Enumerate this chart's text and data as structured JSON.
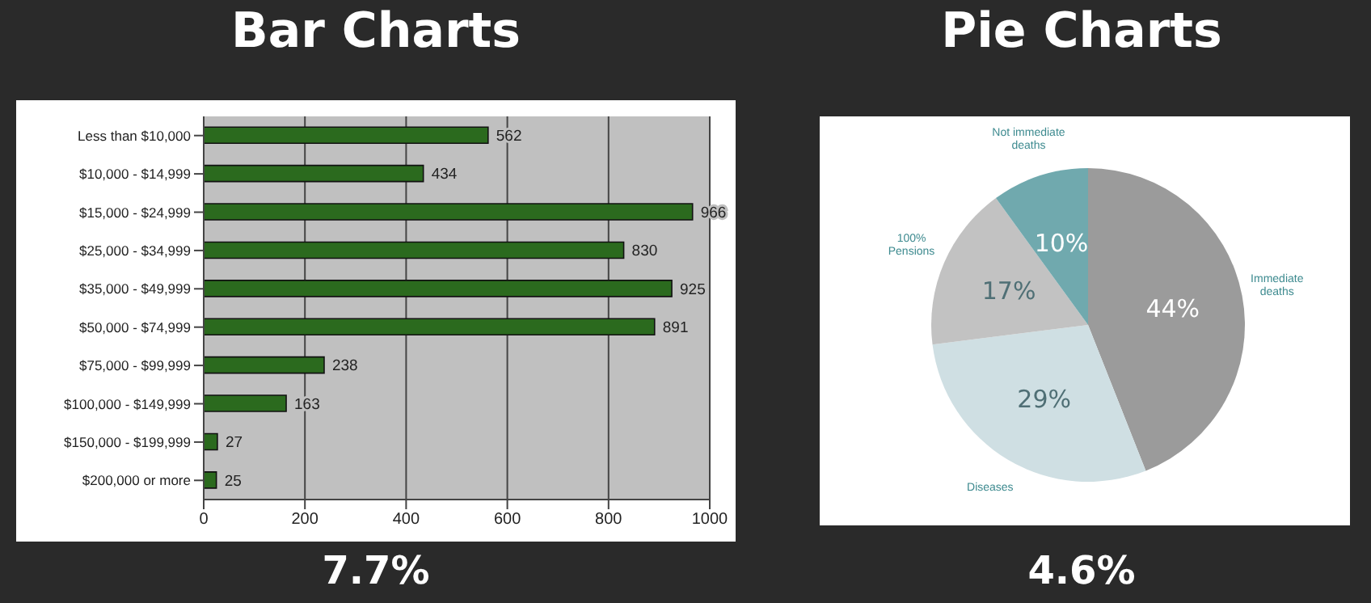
{
  "chart_data": [
    {
      "type": "bar",
      "title": "Bar Charts",
      "subtitle": "7.7%",
      "orientation": "horizontal",
      "categories": [
        "Less than $10,000",
        "$10,000 - $14,999",
        "$15,000 - $24,999",
        "$25,000 - $34,999",
        "$35,000 - $49,999",
        "$50,000 - $74,999",
        "$75,000 - $99,999",
        "$100,000 - $149,999",
        "$150,000 - $199,999",
        "$200,000 or more"
      ],
      "values": [
        562,
        434,
        966,
        830,
        925,
        891,
        238,
        163,
        27,
        25
      ],
      "color": "#2b6a1e",
      "xlim": [
        0,
        1000
      ],
      "xticks": [
        0,
        200,
        400,
        600,
        800,
        1000
      ],
      "grid": "x",
      "data_labels": true
    },
    {
      "type": "pie",
      "title": "Pie Charts",
      "subtitle": "4.6%",
      "categories": [
        "Immediate deaths",
        "Diseases",
        "100% Pensions",
        "Not immediate deaths"
      ],
      "values": [
        44,
        29,
        17,
        10
      ],
      "colors": [
        "#9b9b9b",
        "#cfdfe3",
        "#c2c2c2",
        "#70a9ae"
      ],
      "value_labels": [
        "44%",
        "29%",
        "17%",
        "10%"
      ]
    }
  ]
}
